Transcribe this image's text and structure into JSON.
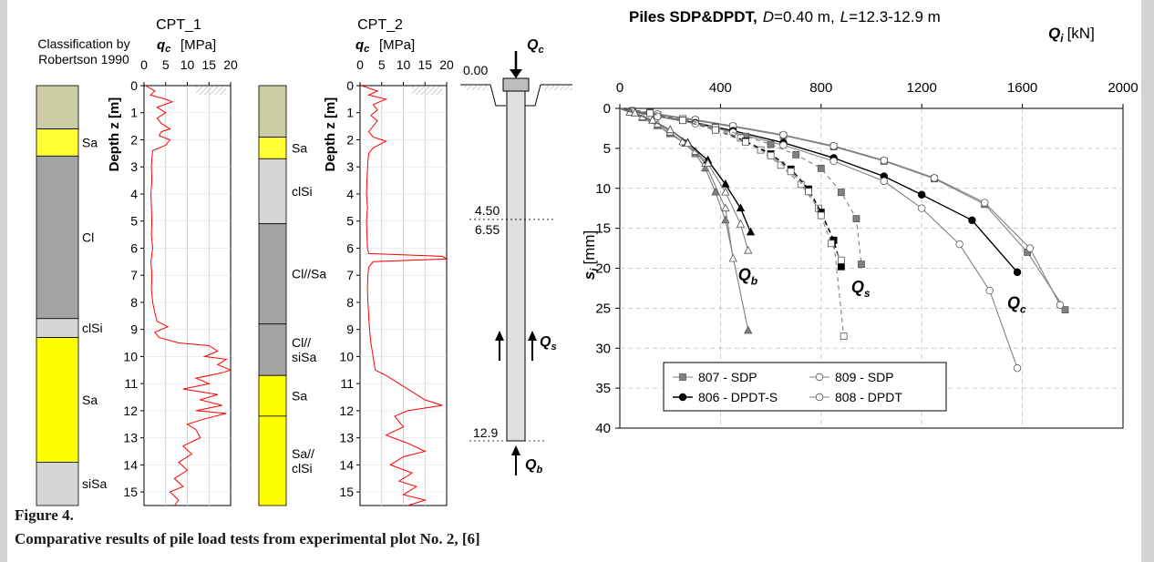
{
  "colors": {
    "sand": "#ffff00",
    "sand_top": "#ffff33",
    "clay": "#a3a3a3",
    "topsoil": "#cccca6",
    "silt": "#d6d6d6",
    "cpt": "#ff0000",
    "pile": "#e0e0e0",
    "grid": "#c8c8c8",
    "curve": "#808080",
    "curve_dark": "#000000",
    "frame": "#d4d4d4"
  },
  "classification": {
    "title_line1": "Classification by",
    "title_line2": "Robertson 1990",
    "depth_max": 15.5,
    "column1_layers": [
      {
        "from": 0.0,
        "to": 1.6,
        "color": "#cccca6",
        "label": ""
      },
      {
        "from": 1.6,
        "to": 2.6,
        "color": "#ffff33",
        "label": "Sa"
      },
      {
        "from": 2.6,
        "to": 8.6,
        "color": "#a3a3a3",
        "label": "Cl"
      },
      {
        "from": 8.6,
        "to": 9.3,
        "color": "#d6d6d6",
        "label": "clSi"
      },
      {
        "from": 9.3,
        "to": 13.9,
        "color": "#ffff00",
        "label": "Sa"
      },
      {
        "from": 13.9,
        "to": 15.5,
        "color": "#d6d6d6",
        "label": "siSa"
      }
    ],
    "column2_layers": [
      {
        "from": 0.0,
        "to": 1.9,
        "color": "#cccca6",
        "label": ""
      },
      {
        "from": 1.9,
        "to": 2.7,
        "color": "#ffff33",
        "label": "Sa"
      },
      {
        "from": 2.7,
        "to": 5.1,
        "color": "#d6d6d6",
        "label": "clSi"
      },
      {
        "from": 5.1,
        "to": 8.8,
        "color": "#a3a3a3",
        "label": "Cl//Sa"
      },
      {
        "from": 8.8,
        "to": 10.7,
        "color": "#a3a3a3",
        "label": "Cl//\nsiSa"
      },
      {
        "from": 10.7,
        "to": 12.2,
        "color": "#ffff00",
        "label": "Sa"
      },
      {
        "from": 12.2,
        "to": 15.5,
        "color": "#ffff00",
        "label": "Sa//\nclSi"
      }
    ]
  },
  "cpt_plots": [
    {
      "title": "CPT_1",
      "xlabel_sym": "q",
      "xlabel_sub": "c",
      "xlabel_unit": "[MPa]",
      "ylabel": "Depth z [m]",
      "xticks": [
        0,
        5,
        10,
        15,
        20
      ],
      "xlim": [
        0,
        20
      ],
      "yticks": [
        0,
        1,
        2,
        3,
        4,
        5,
        6,
        7,
        8,
        9,
        10,
        11,
        12,
        13,
        14,
        15
      ],
      "ylim": [
        0,
        15.5
      ],
      "profile": [
        [
          0.3,
          0.0
        ],
        [
          2.5,
          0.2
        ],
        [
          1.5,
          0.35
        ],
        [
          5,
          0.5
        ],
        [
          6.5,
          0.6
        ],
        [
          3,
          0.8
        ],
        [
          5,
          1.0
        ],
        [
          3,
          1.2
        ],
        [
          4,
          1.4
        ],
        [
          6,
          1.6
        ],
        [
          4,
          1.7
        ],
        [
          3.5,
          1.85
        ],
        [
          6,
          2.0
        ],
        [
          5,
          2.2
        ],
        [
          2,
          2.4
        ],
        [
          1.8,
          2.7
        ],
        [
          1.7,
          3
        ],
        [
          1.8,
          3.5
        ],
        [
          1.6,
          4
        ],
        [
          1.7,
          4.5
        ],
        [
          1.8,
          5
        ],
        [
          1.7,
          5.5
        ],
        [
          2,
          6
        ],
        [
          1.6,
          6.5
        ],
        [
          1.8,
          7
        ],
        [
          1.7,
          7.5
        ],
        [
          2,
          8
        ],
        [
          2.5,
          8.4
        ],
        [
          3,
          8.7
        ],
        [
          5.5,
          8.9
        ],
        [
          2.5,
          9.1
        ],
        [
          3.5,
          9.3
        ],
        [
          8,
          9.5
        ],
        [
          15,
          9.6
        ],
        [
          17,
          9.8
        ],
        [
          14,
          10
        ],
        [
          19,
          10.1
        ],
        [
          17,
          10.3
        ],
        [
          20,
          10.5
        ],
        [
          18,
          10.6
        ],
        [
          12,
          10.8
        ],
        [
          15,
          11
        ],
        [
          9,
          11.2
        ],
        [
          17,
          11.4
        ],
        [
          13,
          11.6
        ],
        [
          18,
          11.8
        ],
        [
          12,
          12
        ],
        [
          19,
          12.1
        ],
        [
          14,
          12.3
        ],
        [
          10,
          12.5
        ],
        [
          12,
          12.7
        ],
        [
          13,
          13
        ],
        [
          9,
          13.3
        ],
        [
          11,
          13.6
        ],
        [
          8,
          13.9
        ],
        [
          10,
          14.2
        ],
        [
          7,
          14.5
        ],
        [
          9,
          14.8
        ],
        [
          6,
          15
        ],
        [
          8,
          15.3
        ],
        [
          7,
          15.5
        ]
      ]
    },
    {
      "title": "CPT_2",
      "xlabel_sym": "q",
      "xlabel_sub": "c",
      "xlabel_unit": "[MPa]",
      "ylabel": "Depth z [m]",
      "xticks": [
        0,
        5,
        10,
        15,
        20
      ],
      "xlim": [
        0,
        20
      ],
      "yticks": [
        0,
        1,
        2,
        3,
        4,
        5,
        6,
        7,
        8,
        9,
        10,
        11,
        12,
        13,
        14,
        15
      ],
      "ylim": [
        0,
        15.5
      ],
      "profile": [
        [
          0.3,
          0.0
        ],
        [
          4,
          0.2
        ],
        [
          2,
          0.35
        ],
        [
          6,
          0.5
        ],
        [
          3,
          0.7
        ],
        [
          4,
          0.9
        ],
        [
          2.5,
          1.1
        ],
        [
          4,
          1.3
        ],
        [
          3,
          1.5
        ],
        [
          2,
          1.7
        ],
        [
          3,
          1.9
        ],
        [
          6,
          2.05
        ],
        [
          3,
          2.3
        ],
        [
          2,
          2.5
        ],
        [
          1.8,
          2.8
        ],
        [
          1.6,
          3.5
        ],
        [
          1.5,
          4
        ],
        [
          1.7,
          4.5
        ],
        [
          1.5,
          5
        ],
        [
          1.6,
          5.5
        ],
        [
          1.7,
          6
        ],
        [
          2,
          6.2
        ],
        [
          19,
          6.3
        ],
        [
          20,
          6.4
        ],
        [
          3,
          6.5
        ],
        [
          2,
          6.7
        ],
        [
          1.8,
          7
        ],
        [
          1.7,
          7.5
        ],
        [
          1.8,
          8
        ],
        [
          2,
          8.5
        ],
        [
          2.2,
          9
        ],
        [
          2.5,
          9.5
        ],
        [
          3,
          10
        ],
        [
          3.5,
          10.5
        ],
        [
          6,
          10.7
        ],
        [
          9,
          11
        ],
        [
          12,
          11.3
        ],
        [
          15,
          11.6
        ],
        [
          19,
          11.8
        ],
        [
          11,
          12
        ],
        [
          8,
          12.2
        ],
        [
          10,
          12.6
        ],
        [
          6,
          12.9
        ],
        [
          11,
          13.2
        ],
        [
          15,
          13.5
        ],
        [
          10,
          13.7
        ],
        [
          7,
          14
        ],
        [
          12,
          14.3
        ],
        [
          9,
          14.6
        ],
        [
          13,
          14.8
        ],
        [
          10,
          15.1
        ],
        [
          15,
          15.3
        ],
        [
          11,
          15.5
        ]
      ]
    }
  ],
  "pile": {
    "head_depth_label": "0.00",
    "marker1_label": "4.50",
    "marker2_label": "6.55",
    "toe_depth_label": "12.9",
    "marker1_depth": 4.5,
    "marker2_depth": 6.55,
    "toe_depth": 12.9,
    "qc_label": "Q",
    "qc_sub": "c",
    "qs_label": "Q",
    "qs_sub": "s",
    "qb_label": "Q",
    "qb_sub": "b"
  },
  "chart_data": {
    "type": "line",
    "title_prefix": "Piles SDP&DPDT,",
    "title_d_sym": "D",
    "title_d_val": "=0.40 m,",
    "title_l_sym": "L",
    "title_l_val": "=12.3-12.9 m",
    "xlabel_sym": "Q",
    "xlabel_sub": "i",
    "xlabel_unit": "[kN]",
    "ylabel_sym": "s",
    "ylabel_sub": "i",
    "ylabel_unit": "[mm]",
    "xlim": [
      0,
      2000
    ],
    "ylim": [
      0,
      40
    ],
    "xticks": [
      0,
      400,
      800,
      1200,
      1600,
      2000
    ],
    "yticks": [
      0,
      5,
      10,
      15,
      20,
      25,
      30,
      35,
      40
    ],
    "grid": true,
    "legend_position": "bottom-left",
    "component_labels": [
      {
        "sym": "Q",
        "sub": "b",
        "x": 470,
        "y": 21.5
      },
      {
        "sym": "Q",
        "sub": "s",
        "x": 920,
        "y": 23.0
      },
      {
        "sym": "Q",
        "sub": "c",
        "x": 1540,
        "y": 25.0
      }
    ],
    "series": [
      {
        "name": "807 - SDP",
        "marker": "square",
        "fill": "#808080",
        "line": "#808080",
        "dash": false,
        "x": [
          0,
          50,
          150,
          300,
          450,
          650,
          850,
          1050,
          1250,
          1450,
          1620,
          1770
        ],
        "y": [
          0,
          0.3,
          0.8,
          1.5,
          2.3,
          3.4,
          4.8,
          6.6,
          8.8,
          12.0,
          18.0,
          25.2
        ]
      },
      {
        "name": "809 - SDP",
        "marker": "circle",
        "fill": "#ffffff",
        "line": "#808080",
        "dash": false,
        "x": [
          0,
          50,
          150,
          300,
          450,
          650,
          850,
          1050,
          1250,
          1450,
          1630,
          1750
        ],
        "y": [
          0,
          0.3,
          0.7,
          1.4,
          2.2,
          3.3,
          4.7,
          6.5,
          8.7,
          11.8,
          17.5,
          24.6
        ]
      },
      {
        "name": "806 - DPDT-S",
        "marker": "circle",
        "fill": "#000000",
        "line": "#000000",
        "dash": false,
        "x": [
          0,
          50,
          150,
          300,
          450,
          650,
          850,
          1050,
          1200,
          1400,
          1580
        ],
        "y": [
          0,
          0.4,
          1.0,
          1.8,
          2.8,
          4.3,
          6.2,
          8.5,
          10.8,
          14.0,
          20.5
        ]
      },
      {
        "name": "808 - DPDT",
        "marker": "circle",
        "fill": "#ffffff",
        "line": "#808080",
        "dash": false,
        "x": [
          0,
          50,
          150,
          300,
          450,
          650,
          850,
          1050,
          1200,
          1350,
          1470,
          1580
        ],
        "y": [
          0,
          0.4,
          1.0,
          1.9,
          3.0,
          4.6,
          6.6,
          9.1,
          12.5,
          17.0,
          22.8,
          32.5
        ]
      },
      {
        "name": "807 Qb",
        "marker": "triangle",
        "fill": "#808080",
        "line": "#808080",
        "dash": false,
        "legend": false,
        "x": [
          0,
          40,
          90,
          150,
          200,
          260,
          300,
          340,
          380,
          420,
          510
        ],
        "y": [
          0,
          0.5,
          1.2,
          2.2,
          3.2,
          4.4,
          5.7,
          7.5,
          10.5,
          14.0,
          27.8
        ]
      },
      {
        "name": "809 Qb",
        "marker": "triangle",
        "fill": "#ffffff",
        "line": "#808080",
        "dash": false,
        "legend": false,
        "x": [
          0,
          40,
          90,
          150,
          200,
          250,
          300,
          340,
          420,
          450
        ],
        "y": [
          0,
          0.5,
          1.1,
          2.0,
          3.0,
          4.2,
          5.4,
          6.9,
          12.5,
          18.8
        ]
      },
      {
        "name": "806 Qb",
        "marker": "triangle",
        "fill": "#000000",
        "line": "#000000",
        "dash": false,
        "legend": false,
        "x": [
          0,
          60,
          130,
          200,
          270,
          350,
          420,
          480,
          520
        ],
        "y": [
          0,
          0.6,
          1.5,
          2.7,
          4.3,
          6.5,
          9.5,
          12.5,
          15.5
        ]
      },
      {
        "name": "808 Qb",
        "marker": "triangle",
        "fill": "#ffffff",
        "line": "#808080",
        "dash": false,
        "legend": false,
        "x": [
          0,
          60,
          130,
          200,
          270,
          350,
          420,
          480,
          510
        ],
        "y": [
          0,
          0.6,
          1.5,
          2.7,
          4.4,
          6.9,
          10.5,
          14.5,
          17.8
        ]
      },
      {
        "name": "807 Qs",
        "marker": "square",
        "fill": "#808080",
        "line": "#808080",
        "dash": true,
        "legend": false,
        "x": [
          0,
          120,
          250,
          380,
          500,
          600,
          700,
          800,
          880,
          940,
          960
        ],
        "y": [
          0,
          0.5,
          1.3,
          2.3,
          3.5,
          4.5,
          5.8,
          7.5,
          10.5,
          13.8,
          19.5
        ]
      },
      {
        "name": "809 Qs",
        "marker": "square",
        "fill": "#ffffff",
        "line": "#808080",
        "dash": true,
        "legend": false,
        "x": [
          0,
          120,
          250,
          380,
          480,
          560,
          640,
          720,
          790,
          850,
          890
        ],
        "y": [
          0,
          0.5,
          1.3,
          2.4,
          3.7,
          5.2,
          7.1,
          9.5,
          12.5,
          16.5,
          28.5
        ]
      },
      {
        "name": "806 Qs",
        "marker": "square",
        "fill": "#000000",
        "line": "#000000",
        "dash": true,
        "legend": false,
        "x": [
          0,
          120,
          250,
          380,
          500,
          600,
          680,
          750,
          800,
          850,
          880
        ],
        "y": [
          0,
          0.6,
          1.5,
          2.7,
          4.1,
          5.7,
          7.6,
          10.1,
          13.0,
          16.5,
          19.8
        ]
      },
      {
        "name": "808 Qs",
        "marker": "square",
        "fill": "#ffffff",
        "line": "#808080",
        "dash": true,
        "legend": false,
        "x": [
          0,
          120,
          250,
          380,
          500,
          600,
          680,
          750,
          800,
          840,
          880
        ],
        "y": [
          0,
          0.6,
          1.5,
          2.7,
          4.2,
          5.9,
          7.9,
          10.4,
          13.4,
          16.9,
          19.0
        ]
      }
    ]
  },
  "caption": {
    "label": "Figure 4.",
    "text": "Comparative results of pile load tests from experimental plot No. 2, [6]"
  }
}
